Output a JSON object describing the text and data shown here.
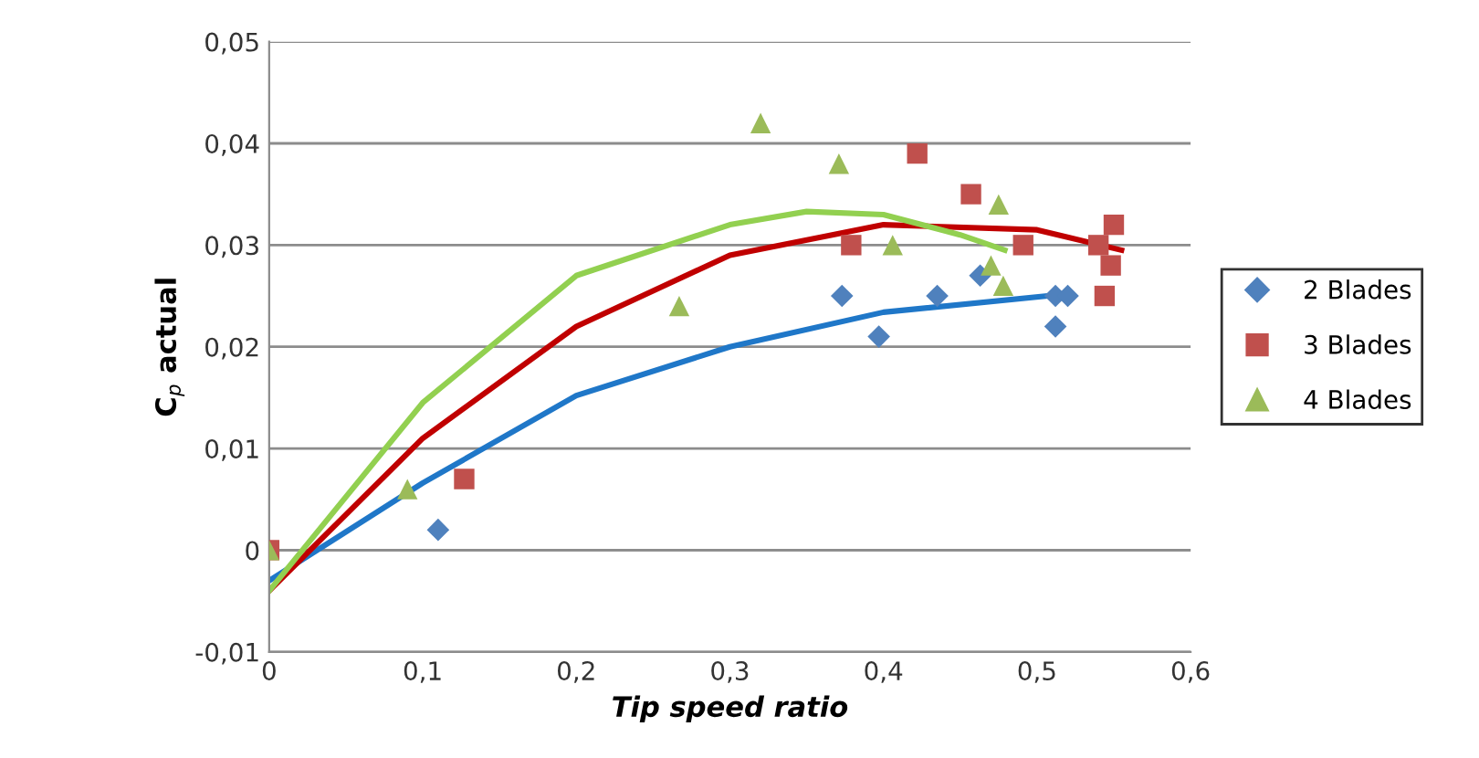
{
  "chart_data": {
    "type": "scatter",
    "xlabel": "Tip speed ratio",
    "ylabel": "C$_{p}$ actual",
    "xlim": [
      0,
      0.6
    ],
    "ylim": [
      -0.01,
      0.05
    ],
    "xticks": [
      {
        "value": 0,
        "label": "0"
      },
      {
        "value": 0.1,
        "label": "0,1"
      },
      {
        "value": 0.2,
        "label": "0,2"
      },
      {
        "value": 0.3,
        "label": "0,3"
      },
      {
        "value": 0.4,
        "label": "0,4"
      },
      {
        "value": 0.5,
        "label": "0,5"
      },
      {
        "value": 0.6,
        "label": "0,6"
      }
    ],
    "yticks": [
      {
        "value": -0.01,
        "label": "-0,01"
      },
      {
        "value": 0,
        "label": "0"
      },
      {
        "value": 0.01,
        "label": "0,01"
      },
      {
        "value": 0.02,
        "label": "0,02"
      },
      {
        "value": 0.03,
        "label": "0,03"
      },
      {
        "value": 0.04,
        "label": "0,04"
      },
      {
        "value": 0.05,
        "label": "0,05"
      }
    ],
    "grid": "y",
    "legend": "right",
    "series": [
      {
        "name": "2 Blades",
        "color": "#4f81bd",
        "marker": "diamond",
        "x": [
          0.11,
          0.373,
          0.397,
          0.435,
          0.463,
          0.512,
          0.52,
          0.512
        ],
        "values": [
          0.002,
          0.025,
          0.021,
          0.025,
          0.027,
          0.025,
          0.025,
          0.022
        ]
      },
      {
        "name": "3 Blades",
        "color": "#c0504d",
        "marker": "square",
        "x": [
          0,
          0.127,
          0.379,
          0.422,
          0.457,
          0.491,
          0.55,
          0.54,
          0.548,
          0.544
        ],
        "values": [
          0,
          0.007,
          0.03,
          0.039,
          0.035,
          0.03,
          0.032,
          0.03,
          0.028,
          0.025
        ]
      },
      {
        "name": "4 Blades",
        "color": "#9bbb59",
        "marker": "triangle",
        "x": [
          0,
          0.09,
          0.267,
          0.32,
          0.371,
          0.406,
          0.475,
          0.47,
          0.478
        ],
        "values": [
          0,
          0.006,
          0.024,
          0.042,
          0.038,
          0.03,
          0.034,
          0.028,
          0.026
        ]
      },
      {
        "type": "line",
        "color": "#1f77c8",
        "x": [
          0,
          0.1,
          0.2,
          0.3,
          0.4,
          0.52
        ],
        "values": [
          -0.003,
          0.0066,
          0.0152,
          0.02,
          0.0234,
          0.0252
        ]
      },
      {
        "type": "line",
        "color": "#c00000",
        "x": [
          0,
          0.1,
          0.2,
          0.3,
          0.4,
          0.5,
          0.555
        ],
        "values": [
          -0.004,
          0.011,
          0.022,
          0.029,
          0.032,
          0.0315,
          0.0295
        ]
      },
      {
        "type": "line",
        "color": "#92d050",
        "x": [
          0,
          0.1,
          0.2,
          0.3,
          0.35,
          0.4,
          0.45,
          0.479
        ],
        "values": [
          -0.004,
          0.0145,
          0.027,
          0.032,
          0.0333,
          0.033,
          0.031,
          0.0295
        ]
      }
    ]
  }
}
